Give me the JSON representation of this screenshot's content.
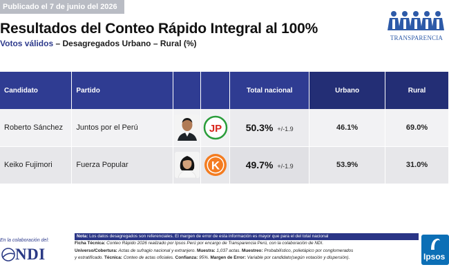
{
  "header": {
    "published": "Publicado el 7 de junio del 2026",
    "title": "Resultados del Conteo Rápido Integral al 100%",
    "subtitle_blue": "Votos válidos",
    "subtitle_rest": " – Desagregados Urbano – Rural (%)",
    "brand_transparencia": "TRANSPARENCIA"
  },
  "chart_data": {
    "type": "table",
    "columns": [
      "Candidato",
      "Partido",
      "",
      "",
      "Total nacional",
      "Urbano",
      "Rural"
    ],
    "rows": [
      {
        "candidate": "Roberto Sánchez",
        "party": "Juntos por el Perú",
        "party_logo_text": "JP",
        "total": "50.3%",
        "margin": "+/-1.9",
        "urban": "46.1%",
        "rural": "69.0%"
      },
      {
        "candidate": "Keiko Fujimori",
        "party": "Fuerza Popular",
        "party_logo_text": "K",
        "total": "49.7%",
        "margin": "+/-1.9",
        "urban": "53.9%",
        "rural": "31.0%"
      }
    ]
  },
  "colors": {
    "header_dark": "#2f3c92",
    "header_navy": "#232e75",
    "jp_red": "#d9261c",
    "jp_green": "#2a9d3a",
    "fp_orange": "#f47c20",
    "ipsos_blue": "#0c6fb6"
  },
  "footer": {
    "collab_label": "En la colaboración del:",
    "ndi_text": "NDI",
    "note_label": "Nota:",
    "note_text": " Los datos desagregados son referenciales. El margen de error de esta información es mayor que para el del total nacional",
    "ficha_label": "Ficha Técnica:",
    "ficha_text": " Conteo Rápido 2026 realizado por Ipsos Perú por encargo de Transparencia Perú, con la colaboración de NDI.",
    "universo_label": "Universo/Cobertura:",
    "universo_text": " Actas de sufragio nacional y extranjero. ",
    "muestra_label": "Muestra:",
    "muestra_text": " 1,037 actas. ",
    "muestreo_label": "Muestreo:",
    "muestreo_text": " Probabilístico, polietápico por conglomerados",
    "line4_text": "y estratificado. ",
    "tecnica_label": "Técnica:",
    "tecnica_text": " Conteo de actas oficiales. ",
    "confianza_label": "Confianza:",
    "confianza_text": " 95%. ",
    "margen_label": "Margen de Error:",
    "margen_text": " Variable por candidato(según votación y dispersión).",
    "ipsos_text": "Ipsos"
  }
}
